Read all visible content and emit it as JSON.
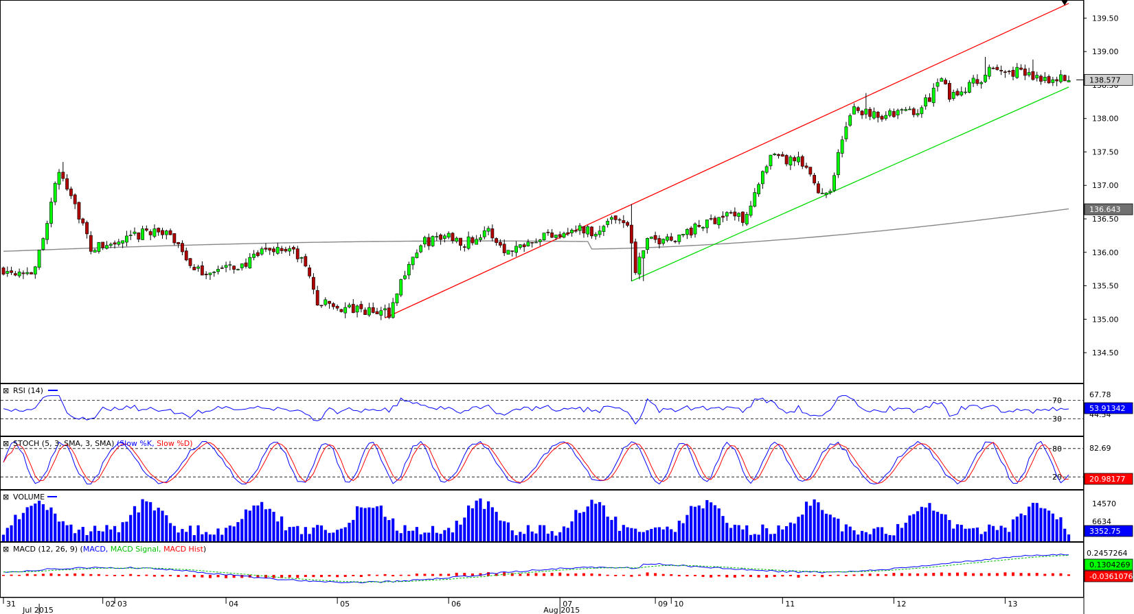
{
  "chart_data": {
    "type": "candlestick",
    "price": {
      "y_ticks": [
        "139.50",
        "139.00",
        "138.50",
        "138.00",
        "137.50",
        "137.00",
        "136.50",
        "136.00",
        "135.50",
        "135.00",
        "134.50"
      ],
      "ylim": [
        134.05,
        139.75
      ],
      "last_price": "138.577",
      "ma_value": "136.643",
      "channel_upper": {
        "start_bar": 96,
        "start_price": 135.02,
        "end_bar": 268,
        "end_price": 139.72
      },
      "channel_lower": {
        "start_bar": 158,
        "start_price": 135.57,
        "end_bar": 268,
        "end_price": 138.47
      },
      "waypoints": [
        [
          0,
          135.75
        ],
        [
          8,
          135.72
        ],
        [
          11,
          136.5
        ],
        [
          14,
          137.2
        ],
        [
          17,
          136.9
        ],
        [
          22,
          136.05
        ],
        [
          30,
          136.15
        ],
        [
          38,
          136.35
        ],
        [
          44,
          136.15
        ],
        [
          48,
          135.7
        ],
        [
          56,
          135.75
        ],
        [
          62,
          135.85
        ],
        [
          66,
          136.05
        ],
        [
          72,
          136.05
        ],
        [
          76,
          135.8
        ],
        [
          79,
          135.25
        ],
        [
          86,
          135.15
        ],
        [
          94,
          135.1
        ],
        [
          97,
          135.1
        ],
        [
          102,
          135.85
        ],
        [
          106,
          136.15
        ],
        [
          112,
          136.25
        ],
        [
          116,
          136.15
        ],
        [
          122,
          136.3
        ],
        [
          127,
          136.0
        ],
        [
          132,
          136.2
        ],
        [
          140,
          136.3
        ],
        [
          145,
          136.35
        ],
        [
          150,
          136.3
        ],
        [
          153,
          136.55
        ],
        [
          157,
          136.45
        ],
        [
          159,
          135.75
        ],
        [
          162,
          136.15
        ],
        [
          170,
          136.25
        ],
        [
          176,
          136.4
        ],
        [
          182,
          136.6
        ],
        [
          186,
          136.5
        ],
        [
          190,
          137.0
        ],
        [
          193,
          137.4
        ],
        [
          200,
          137.35
        ],
        [
          203,
          137.15
        ],
        [
          205,
          136.9
        ],
        [
          208,
          136.95
        ],
        [
          211,
          137.7
        ],
        [
          214,
          138.15
        ],
        [
          217,
          138.1
        ],
        [
          222,
          138.05
        ],
        [
          227,
          138.1
        ],
        [
          231,
          138.15
        ],
        [
          236,
          138.6
        ],
        [
          238,
          138.3
        ],
        [
          241,
          138.45
        ],
        [
          245,
          138.55
        ],
        [
          248,
          138.7
        ],
        [
          255,
          138.7
        ],
        [
          258,
          138.65
        ],
        [
          264,
          138.6
        ],
        [
          267,
          138.58
        ]
      ],
      "ma_start": 135.95,
      "ma_end": 136.65
    },
    "panels": [
      {
        "name": "RSI",
        "title": "RSI (14)",
        "levels": [
          "70",
          "30"
        ],
        "labels": [
          "67.78",
          "44.54"
        ],
        "value": "53.91342",
        "value_color": "#0000ff"
      },
      {
        "name": "STOCH",
        "title": "STOCH (5, 3, SMA, 3, SMA)",
        "series": [
          "Slow %K",
          "Slow %D"
        ],
        "series_colors": [
          "#0000ff",
          "#ff0000"
        ],
        "levels": [
          "80",
          "20"
        ],
        "labels": [
          "82.69",
          "20.98177"
        ],
        "value_color": "#ff0000"
      },
      {
        "name": "VOLUME",
        "title": "VOLUME",
        "labels": [
          "14570",
          "6634",
          "3352.75"
        ],
        "value_color": "#0000ff"
      },
      {
        "name": "MACD",
        "title": "MACD (12, 26, 9)",
        "series": [
          "MACD",
          "MACD Signal",
          "MACD Hist"
        ],
        "series_colors": [
          "#0000ff",
          "#00c000",
          "#ff0000"
        ],
        "labels": [
          "0.2457264",
          "0.1304269",
          "-0.0361076"
        ],
        "value_colors": [
          "#00ff00",
          "#ff0000"
        ]
      }
    ],
    "x_labels": [
      {
        "text": "31",
        "bar": 0
      },
      {
        "text": "02",
        "bar": 25
      },
      {
        "text": "03",
        "bar": 28
      },
      {
        "text": "04",
        "bar": 56
      },
      {
        "text": "05",
        "bar": 84
      },
      {
        "text": "06",
        "bar": 112
      },
      {
        "text": "07",
        "bar": 140
      },
      {
        "text": "09",
        "bar": 164
      },
      {
        "text": "10",
        "bar": 168
      },
      {
        "text": "11",
        "bar": 196
      },
      {
        "text": "12",
        "bar": 224
      },
      {
        "text": "13",
        "bar": 252
      }
    ],
    "month_labels": [
      {
        "text": "Jul 2015",
        "bar": 9
      },
      {
        "text": "Aug 2015",
        "bar": 140
      }
    ],
    "colors": {
      "up": "#00ff00",
      "down": "#b00000",
      "ma": "#888888",
      "channel_upper": "#ff0000",
      "channel_lower": "#00dd00",
      "volume": "#0000ff"
    }
  }
}
